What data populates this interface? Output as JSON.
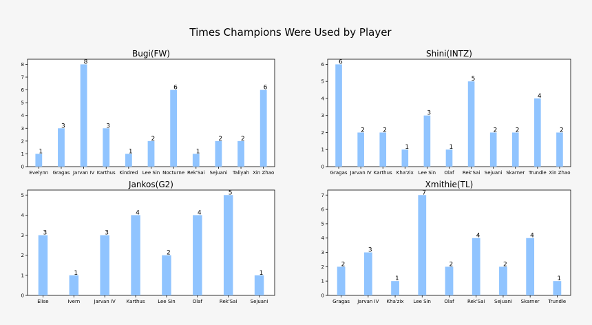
{
  "figure": {
    "title": "Times Champions Were Used by Player"
  },
  "colors": {
    "bar": "#90c4ff",
    "axis": "#000000",
    "background": "#f6f6f6",
    "plot_bg": "#ffffff"
  },
  "chart_data": [
    {
      "type": "bar",
      "title": "Bugi(FW)",
      "categories": [
        "Evelynn",
        "Gragas",
        "Jarvan IV",
        "Karthus",
        "Kindred",
        "Lee Sin",
        "Nocturne",
        "Rek'Sai",
        "Sejuani",
        "Taliyah",
        "Xin Zhao"
      ],
      "values": [
        1,
        3,
        8,
        3,
        1,
        2,
        6,
        1,
        2,
        2,
        6
      ],
      "yticks": [
        0,
        1,
        2,
        3,
        4,
        5,
        6,
        7,
        8
      ],
      "ylim": [
        0,
        8.4
      ],
      "xlabel": "",
      "ylabel": ""
    },
    {
      "type": "bar",
      "title": "Shini(INTZ)",
      "categories": [
        "Gragas",
        "Jarvan IV",
        "Karthus",
        "Kha'zix",
        "Lee Sin",
        "Olaf",
        "Rek'Sai",
        "Sejuani",
        "Skarner",
        "Trundle",
        "Xin Zhao"
      ],
      "values": [
        6,
        2,
        2,
        1,
        3,
        1,
        5,
        2,
        2,
        4,
        2
      ],
      "yticks": [
        0,
        1,
        2,
        3,
        4,
        5,
        6
      ],
      "ylim": [
        0,
        6.3
      ],
      "xlabel": "",
      "ylabel": ""
    },
    {
      "type": "bar",
      "title": "Jankos(G2)",
      "categories": [
        "Elise",
        "Ivern",
        "Jarvan IV",
        "Karthus",
        "Lee Sin",
        "Olaf",
        "Rek'Sai",
        "Sejuani"
      ],
      "values": [
        3,
        1,
        3,
        4,
        2,
        4,
        5,
        1
      ],
      "yticks": [
        0,
        1,
        2,
        3,
        4,
        5
      ],
      "ylim": [
        0,
        5.25
      ],
      "xlabel": "",
      "ylabel": ""
    },
    {
      "type": "bar",
      "title": "Xmithie(TL)",
      "categories": [
        "Gragas",
        "Jarvan IV",
        "Kha'zix",
        "Lee Sin",
        "Olaf",
        "Rek'Sai",
        "Sejuani",
        "Skarner",
        "Trundle"
      ],
      "values": [
        2,
        3,
        1,
        7,
        2,
        4,
        2,
        4,
        1
      ],
      "yticks": [
        0,
        1,
        2,
        3,
        4,
        5,
        6,
        7
      ],
      "ylim": [
        0,
        7.35
      ],
      "xlabel": "",
      "ylabel": ""
    }
  ]
}
